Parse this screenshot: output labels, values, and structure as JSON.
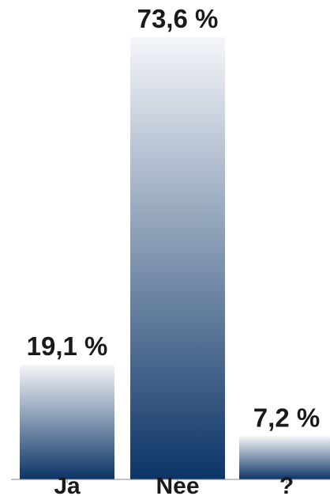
{
  "chart_data": {
    "type": "bar",
    "categories": [
      "Ja",
      "Nee",
      "?"
    ],
    "values": [
      19.1,
      73.6,
      7.2
    ],
    "value_labels": [
      "19,1 %",
      "73,6 %",
      "7,2 %"
    ],
    "title": "",
    "xlabel": "",
    "ylabel": "",
    "ylim": [
      0,
      73.6
    ],
    "grid": false,
    "legend": "none",
    "colors": {
      "bar_top": "#f4f6f9",
      "bar_bottom": "#0c3466",
      "axis": "#888888"
    }
  }
}
